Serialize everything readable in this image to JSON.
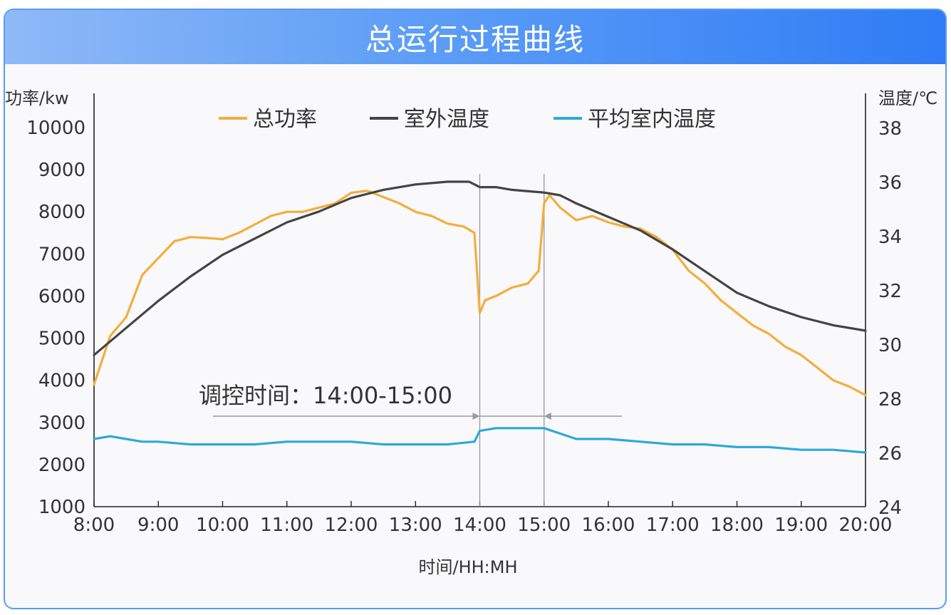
{
  "header": {
    "title": "总运行过程曲线"
  },
  "chart_data": {
    "type": "line",
    "title": "总运行过程曲线",
    "xlabel": "时间/HH:MH",
    "ylabel_left": "功率/kw",
    "ylabel_right": "温度/℃",
    "x_ticks": [
      "8:00",
      "9:00",
      "10:00",
      "11:00",
      "12:00",
      "13:00",
      "14:00",
      "15:00",
      "16:00",
      "17:00",
      "18:00",
      "19:00",
      "20:00"
    ],
    "y_left_ticks": [
      "1000",
      "2000",
      "3000",
      "4000",
      "5000",
      "6000",
      "7000",
      "8000",
      "9000",
      "10000"
    ],
    "y_right_ticks": [
      "24",
      "26",
      "28",
      "30",
      "32",
      "34",
      "36",
      "38"
    ],
    "ylim_left": [
      1000,
      10000
    ],
    "ylim_right": [
      24,
      38
    ],
    "legend_position": "top-center",
    "colors": {
      "power": "#f4ad3d",
      "outdoor": "#444444",
      "indoor": "#2ea8dd",
      "axis": "#222222",
      "marker": "#999999"
    },
    "series": [
      {
        "name": "总功率",
        "axis": "left",
        "x": [
          "8:00",
          "8:15",
          "8:30",
          "8:45",
          "9:00",
          "9:15",
          "9:30",
          "9:45",
          "10:00",
          "10:15",
          "10:30",
          "10:45",
          "11:00",
          "11:15",
          "11:30",
          "11:45",
          "12:00",
          "12:15",
          "12:30",
          "12:45",
          "13:00",
          "13:15",
          "13:30",
          "13:45",
          "13:55",
          "14:00",
          "14:05",
          "14:15",
          "14:30",
          "14:45",
          "14:55",
          "15:00",
          "15:05",
          "15:15",
          "15:30",
          "15:45",
          "16:00",
          "16:15",
          "16:30",
          "16:45",
          "17:00",
          "17:15",
          "17:30",
          "17:45",
          "18:00",
          "18:15",
          "18:30",
          "18:45",
          "19:00",
          "19:15",
          "19:30",
          "19:45",
          "20:00"
        ],
        "values": [
          3900,
          5050,
          5500,
          6500,
          6900,
          7300,
          7400,
          7380,
          7350,
          7500,
          7700,
          7900,
          8000,
          8000,
          8100,
          8200,
          8450,
          8500,
          8350,
          8200,
          8000,
          7900,
          7720,
          7650,
          7500,
          5600,
          5900,
          6000,
          6200,
          6300,
          6600,
          8200,
          8400,
          8100,
          7800,
          7900,
          7750,
          7650,
          7600,
          7400,
          7100,
          6600,
          6300,
          5900,
          5600,
          5300,
          5100,
          4800,
          4600,
          4300,
          4000,
          3850,
          3650
        ]
      },
      {
        "name": "室外温度",
        "axis": "right",
        "x": [
          "8:00",
          "8:30",
          "9:00",
          "9:30",
          "10:00",
          "10:30",
          "11:00",
          "11:30",
          "12:00",
          "12:30",
          "13:00",
          "13:30",
          "13:50",
          "14:00",
          "14:15",
          "14:30",
          "15:00",
          "15:15",
          "15:30",
          "16:00",
          "16:30",
          "17:00",
          "17:30",
          "18:00",
          "18:30",
          "19:00",
          "19:30",
          "20:00"
        ],
        "values": [
          29.6,
          30.6,
          31.6,
          32.5,
          33.3,
          33.9,
          34.5,
          34.9,
          35.4,
          35.7,
          35.9,
          36.0,
          36.0,
          35.8,
          35.8,
          35.7,
          35.6,
          35.5,
          35.2,
          34.7,
          34.2,
          33.5,
          32.7,
          31.9,
          31.4,
          31.0,
          30.7,
          30.5
        ]
      },
      {
        "name": "平均室内温度",
        "axis": "right",
        "x": [
          "8:00",
          "8:15",
          "8:30",
          "8:45",
          "9:00",
          "9:30",
          "10:00",
          "10:30",
          "11:00",
          "11:30",
          "12:00",
          "12:30",
          "13:00",
          "13:30",
          "13:55",
          "14:00",
          "14:15",
          "14:30",
          "14:45",
          "15:00",
          "15:15",
          "15:30",
          "16:00",
          "16:30",
          "17:00",
          "17:30",
          "18:00",
          "18:30",
          "19:00",
          "19:30",
          "20:00"
        ],
        "values": [
          26.5,
          26.6,
          26.5,
          26.4,
          26.4,
          26.3,
          26.3,
          26.3,
          26.4,
          26.4,
          26.4,
          26.3,
          26.3,
          26.3,
          26.4,
          26.8,
          26.9,
          26.9,
          26.9,
          26.9,
          26.7,
          26.5,
          26.5,
          26.4,
          26.3,
          26.3,
          26.2,
          26.2,
          26.1,
          26.1,
          26.0
        ]
      }
    ],
    "annotation": {
      "label": "调控时间：14:00-15:00",
      "start": "14:00",
      "end": "15:00"
    }
  }
}
